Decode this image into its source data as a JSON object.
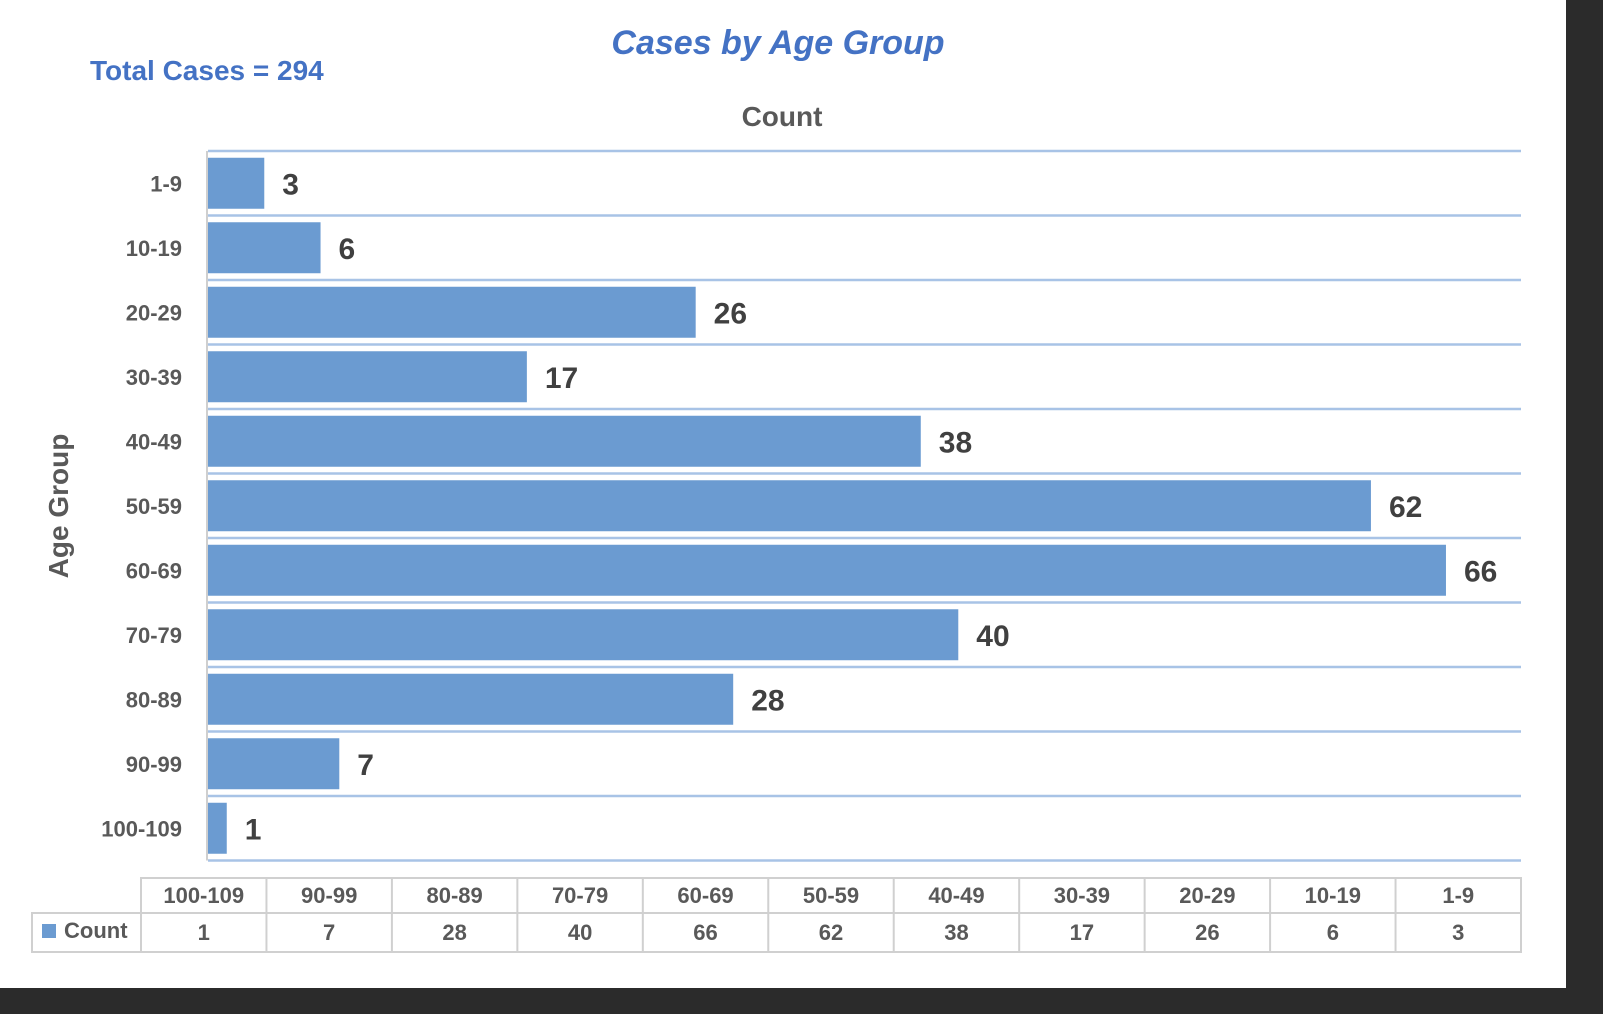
{
  "summary": {
    "total_text": "Total Cases = 294"
  },
  "chart_data": {
    "type": "bar",
    "orientation": "horizontal",
    "title": "Cases by Age Group",
    "xlabel": "Count",
    "ylabel": "Age Group",
    "categories": [
      "1-9",
      "10-19",
      "20-29",
      "30-39",
      "40-49",
      "50-59",
      "60-69",
      "70-79",
      "80-89",
      "90-99",
      "100-109"
    ],
    "series": [
      {
        "name": "Count",
        "values": [
          3,
          6,
          26,
          17,
          38,
          62,
          66,
          40,
          28,
          7,
          1
        ]
      }
    ],
    "xlim": [
      0,
      70
    ],
    "grid": true,
    "data_table": {
      "header": [
        "100-109",
        "90-99",
        "80-89",
        "70-79",
        "60-69",
        "50-59",
        "40-49",
        "30-39",
        "20-29",
        "10-19",
        "1-9"
      ],
      "row_label": "Count",
      "values": [
        "1",
        "7",
        "28",
        "40",
        "66",
        "62",
        "38",
        "17",
        "26",
        "6",
        "3"
      ]
    },
    "colors": {
      "bar": "#6b9bd1",
      "grid": "#a8c3e6",
      "accent": "#4472c4"
    }
  }
}
